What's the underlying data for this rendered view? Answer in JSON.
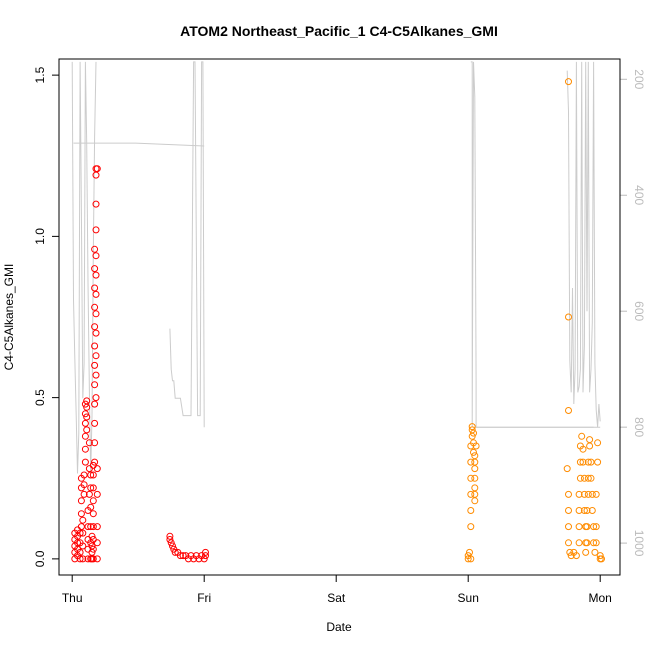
{
  "chart_data": {
    "type": "scatter",
    "title": "ATOM2 Northeast_Pacific_1 C4-C5Alkanes_GMI",
    "xlabel": "Date",
    "ylabel": "C4-C5Alkanes_GMI",
    "x_ticks": [
      {
        "day": 0,
        "label": "Thu"
      },
      {
        "day": 1,
        "label": "Fri"
      },
      {
        "day": 2,
        "label": "Sat"
      },
      {
        "day": 3,
        "label": "Sun"
      },
      {
        "day": 4,
        "label": "Mon"
      }
    ],
    "xlim": [
      -0.1,
      4.15
    ],
    "y_ticks": [
      "0.0",
      "0.5",
      "1.0",
      "1.5"
    ],
    "ylim": [
      -0.05,
      1.55
    ],
    "y2_ticks": [
      "200",
      "400",
      "600",
      "800",
      "1000"
    ],
    "y2lim": [
      1055,
      165
    ],
    "grid": false,
    "colors": {
      "series_red": "#ff0000",
      "series_orange": "#ff8c00",
      "altitude_line": "#cccccc"
    },
    "series": [
      {
        "color": "#ff0000",
        "points": [
          [
            0.02,
            0.0
          ],
          [
            0.02,
            0.02
          ],
          [
            0.02,
            0.04
          ],
          [
            0.02,
            0.06
          ],
          [
            0.02,
            0.08
          ],
          [
            0.04,
            0.01
          ],
          [
            0.04,
            0.03
          ],
          [
            0.04,
            0.05
          ],
          [
            0.04,
            0.07
          ],
          [
            0.04,
            0.09
          ],
          [
            0.06,
            0.0
          ],
          [
            0.06,
            0.02
          ],
          [
            0.06,
            0.05
          ],
          [
            0.06,
            0.08
          ],
          [
            0.07,
            0.1
          ],
          [
            0.07,
            0.14
          ],
          [
            0.07,
            0.18
          ],
          [
            0.07,
            0.22
          ],
          [
            0.07,
            0.25
          ],
          [
            0.08,
            0.0
          ],
          [
            0.08,
            0.04
          ],
          [
            0.08,
            0.08
          ],
          [
            0.08,
            0.12
          ],
          [
            0.09,
            0.2
          ],
          [
            0.09,
            0.23
          ],
          [
            0.09,
            0.26
          ],
          [
            0.1,
            0.3
          ],
          [
            0.1,
            0.34
          ],
          [
            0.1,
            0.38
          ],
          [
            0.1,
            0.42
          ],
          [
            0.1,
            0.45
          ],
          [
            0.1,
            0.48
          ],
          [
            0.11,
            0.4
          ],
          [
            0.11,
            0.44
          ],
          [
            0.11,
            0.47
          ],
          [
            0.11,
            0.49
          ],
          [
            0.12,
            0.0
          ],
          [
            0.12,
            0.03
          ],
          [
            0.12,
            0.06
          ],
          [
            0.12,
            0.1
          ],
          [
            0.12,
            0.15
          ],
          [
            0.13,
            0.2
          ],
          [
            0.13,
            0.28
          ],
          [
            0.13,
            0.36
          ],
          [
            0.14,
            0.0
          ],
          [
            0.14,
            0.05
          ],
          [
            0.14,
            0.1
          ],
          [
            0.14,
            0.16
          ],
          [
            0.14,
            0.22
          ],
          [
            0.14,
            0.26
          ],
          [
            0.15,
            0.0
          ],
          [
            0.15,
            0.02
          ],
          [
            0.15,
            0.04
          ],
          [
            0.15,
            0.07
          ],
          [
            0.16,
            0.0
          ],
          [
            0.16,
            0.03
          ],
          [
            0.16,
            0.06
          ],
          [
            0.16,
            0.1
          ],
          [
            0.16,
            0.14
          ],
          [
            0.16,
            0.18
          ],
          [
            0.16,
            0.22
          ],
          [
            0.16,
            0.26
          ],
          [
            0.16,
            0.29
          ],
          [
            0.17,
            0.3
          ],
          [
            0.17,
            0.36
          ],
          [
            0.17,
            0.42
          ],
          [
            0.17,
            0.48
          ],
          [
            0.17,
            0.54
          ],
          [
            0.17,
            0.6
          ],
          [
            0.17,
            0.66
          ],
          [
            0.17,
            0.72
          ],
          [
            0.17,
            0.78
          ],
          [
            0.17,
            0.84
          ],
          [
            0.17,
            0.9
          ],
          [
            0.17,
            0.96
          ],
          [
            0.18,
            0.5
          ],
          [
            0.18,
            0.57
          ],
          [
            0.18,
            0.63
          ],
          [
            0.18,
            0.7
          ],
          [
            0.18,
            0.76
          ],
          [
            0.18,
            0.82
          ],
          [
            0.18,
            0.88
          ],
          [
            0.18,
            0.94
          ],
          [
            0.18,
            1.02
          ],
          [
            0.18,
            1.1
          ],
          [
            0.18,
            1.19
          ],
          [
            0.18,
            1.21
          ],
          [
            0.19,
            0.0
          ],
          [
            0.19,
            0.05
          ],
          [
            0.19,
            0.1
          ],
          [
            0.19,
            0.2
          ],
          [
            0.19,
            0.28
          ],
          [
            0.19,
            1.21
          ],
          [
            0.74,
            0.07
          ],
          [
            0.74,
            0.06
          ],
          [
            0.75,
            0.05
          ],
          [
            0.76,
            0.04
          ],
          [
            0.77,
            0.03
          ],
          [
            0.78,
            0.02
          ],
          [
            0.8,
            0.02
          ],
          [
            0.82,
            0.01
          ],
          [
            0.84,
            0.01
          ],
          [
            0.86,
            0.01
          ],
          [
            0.88,
            0.0
          ],
          [
            0.9,
            0.01
          ],
          [
            0.92,
            0.0
          ],
          [
            0.94,
            0.01
          ],
          [
            0.96,
            0.0
          ],
          [
            0.98,
            0.01
          ],
          [
            1.0,
            0.0
          ],
          [
            1.01,
            0.01
          ],
          [
            1.01,
            0.02
          ]
        ]
      },
      {
        "color": "#ff8c00",
        "points": [
          [
            3.0,
            0.0
          ],
          [
            3.0,
            0.01
          ],
          [
            3.01,
            0.02
          ],
          [
            3.02,
            0.0
          ],
          [
            3.02,
            0.1
          ],
          [
            3.02,
            0.15
          ],
          [
            3.02,
            0.2
          ],
          [
            3.02,
            0.25
          ],
          [
            3.02,
            0.3
          ],
          [
            3.02,
            0.35
          ],
          [
            3.03,
            0.38
          ],
          [
            3.03,
            0.4
          ],
          [
            3.03,
            0.41
          ],
          [
            3.04,
            0.39
          ],
          [
            3.04,
            0.36
          ],
          [
            3.04,
            0.33
          ],
          [
            3.05,
            0.3
          ],
          [
            3.05,
            0.25
          ],
          [
            3.05,
            0.2
          ],
          [
            3.05,
            0.18
          ],
          [
            3.05,
            0.22
          ],
          [
            3.05,
            0.28
          ],
          [
            3.05,
            0.32
          ],
          [
            3.06,
            0.35
          ],
          [
            3.75,
            0.28
          ],
          [
            3.76,
            0.2
          ],
          [
            3.76,
            0.15
          ],
          [
            3.76,
            0.1
          ],
          [
            3.76,
            0.05
          ],
          [
            3.76,
            0.46
          ],
          [
            3.76,
            0.75
          ],
          [
            3.76,
            1.48
          ],
          [
            3.77,
            0.02
          ],
          [
            3.78,
            0.01
          ],
          [
            3.8,
            0.02
          ],
          [
            3.82,
            0.01
          ],
          [
            3.84,
            0.05
          ],
          [
            3.84,
            0.1
          ],
          [
            3.84,
            0.15
          ],
          [
            3.84,
            0.2
          ],
          [
            3.85,
            0.25
          ],
          [
            3.85,
            0.3
          ],
          [
            3.85,
            0.35
          ],
          [
            3.86,
            0.38
          ],
          [
            3.87,
            0.34
          ],
          [
            3.87,
            0.3
          ],
          [
            3.88,
            0.25
          ],
          [
            3.88,
            0.2
          ],
          [
            3.88,
            0.15
          ],
          [
            3.89,
            0.1
          ],
          [
            3.89,
            0.05
          ],
          [
            3.89,
            0.02
          ],
          [
            3.9,
            0.05
          ],
          [
            3.9,
            0.1
          ],
          [
            3.9,
            0.15
          ],
          [
            3.91,
            0.2
          ],
          [
            3.91,
            0.25
          ],
          [
            3.91,
            0.3
          ],
          [
            3.92,
            0.35
          ],
          [
            3.92,
            0.37
          ],
          [
            3.93,
            0.3
          ],
          [
            3.93,
            0.25
          ],
          [
            3.94,
            0.2
          ],
          [
            3.94,
            0.15
          ],
          [
            3.95,
            0.1
          ],
          [
            3.95,
            0.05
          ],
          [
            3.96,
            0.02
          ],
          [
            3.97,
            0.05
          ],
          [
            3.97,
            0.1
          ],
          [
            3.97,
            0.2
          ],
          [
            3.98,
            0.3
          ],
          [
            3.98,
            0.36
          ],
          [
            4.0,
            0.0
          ],
          [
            4.01,
            0.0
          ],
          [
            4.0,
            0.01
          ]
        ]
      }
    ],
    "altitude_trace": {
      "color": "#cccccc",
      "segments": [
        [
          [
            0.0,
            170
          ],
          [
            0.01,
            580
          ],
          [
            0.02,
            680
          ],
          [
            0.03,
            780
          ],
          [
            0.04,
            880
          ],
          [
            0.05,
            810
          ],
          [
            0.06,
            170
          ],
          [
            0.07,
            430
          ],
          [
            0.08,
            750
          ],
          [
            0.09,
            690
          ],
          [
            0.1,
            170
          ],
          [
            0.11,
            310
          ],
          [
            0.12,
            550
          ],
          [
            0.13,
            740
          ],
          [
            0.14,
            880
          ],
          [
            0.15,
            780
          ],
          [
            0.16,
            500
          ],
          [
            0.17,
            300
          ],
          [
            0.18,
            170
          ]
        ],
        [
          [
            0.01,
            310
          ],
          [
            0.48,
            310
          ],
          [
            1.0,
            315
          ]
        ],
        [
          [
            0.74,
            630
          ],
          [
            0.75,
            700
          ],
          [
            0.76,
            720
          ],
          [
            0.77,
            720
          ],
          [
            0.78,
            750
          ],
          [
            0.8,
            750
          ],
          [
            0.82,
            750
          ],
          [
            0.84,
            780
          ],
          [
            0.9,
            780
          ],
          [
            0.92,
            170
          ],
          [
            0.93,
            170
          ],
          [
            0.95,
            780
          ],
          [
            0.97,
            780
          ],
          [
            0.98,
            170
          ],
          [
            0.99,
            170
          ],
          [
            1.0,
            800
          ]
        ],
        [
          [
            3.02,
            170
          ],
          [
            3.03,
            170
          ],
          [
            3.03,
            800
          ],
          [
            3.04,
            170
          ],
          [
            3.05,
            230
          ],
          [
            3.06,
            720
          ],
          [
            3.06,
            800
          ],
          [
            3.95,
            800
          ]
        ],
        [
          [
            3.06,
            800
          ],
          [
            4.0,
            800
          ]
        ],
        [
          [
            3.75,
            185
          ],
          [
            3.76,
            255
          ],
          [
            3.77,
            685
          ],
          [
            3.78,
            740
          ],
          [
            3.79,
            560
          ],
          [
            3.8,
            760
          ],
          [
            3.81,
            700
          ],
          [
            3.82,
            170
          ],
          [
            3.83,
            740
          ],
          [
            3.84,
            730
          ],
          [
            3.85,
            700
          ],
          [
            3.86,
            170
          ],
          [
            3.87,
            740
          ],
          [
            3.88,
            660
          ],
          [
            3.89,
            170
          ],
          [
            3.9,
            600
          ],
          [
            3.91,
            170
          ],
          [
            3.92,
            740
          ],
          [
            3.93,
            700
          ],
          [
            3.94,
            620
          ],
          [
            3.95,
            170
          ],
          [
            3.96,
            690
          ],
          [
            3.97,
            770
          ],
          [
            3.98,
            800
          ],
          [
            3.99,
            760
          ],
          [
            4.0,
            790
          ]
        ]
      ]
    }
  }
}
